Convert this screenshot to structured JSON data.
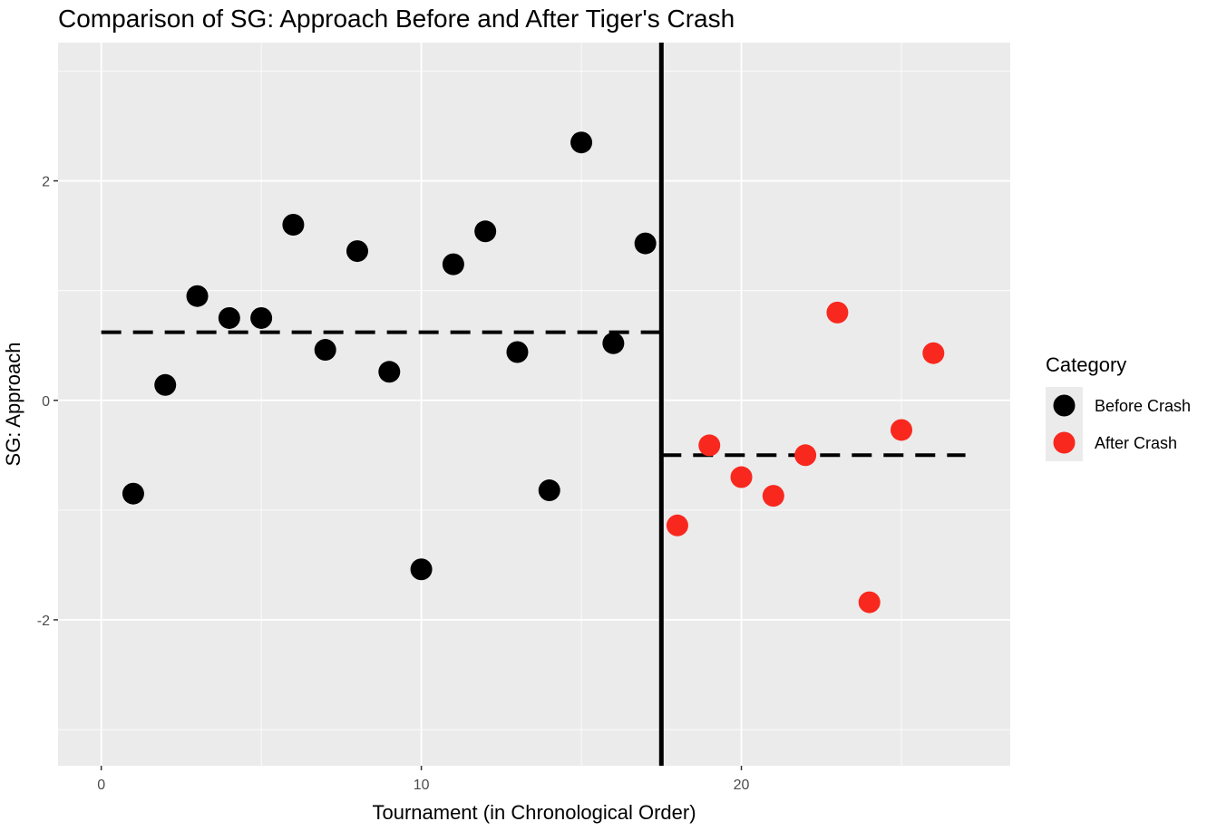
{
  "chart_data": {
    "type": "scatter",
    "title": "Comparison of SG: Approach Before and After Tiger's Crash",
    "xlabel": "Tournament (in Chronological Order)",
    "ylabel": "SG: Approach",
    "xlim": [
      -1.35,
      28.4
    ],
    "ylim": [
      -3.33,
      3.26
    ],
    "x_ticks": [
      0,
      10,
      20
    ],
    "y_ticks": [
      -2,
      0,
      2
    ],
    "grid": true,
    "legend": {
      "title": "Category",
      "placement": "right"
    },
    "series": [
      {
        "name": "Before Crash",
        "color": "#000000",
        "x": [
          1,
          2,
          3,
          4,
          5,
          6,
          7,
          8,
          9,
          10,
          11,
          12,
          13,
          14,
          15,
          16,
          17
        ],
        "y": [
          -0.85,
          0.14,
          0.95,
          0.75,
          0.75,
          1.6,
          0.46,
          1.36,
          0.26,
          -1.54,
          1.24,
          1.54,
          0.44,
          -0.82,
          2.35,
          0.52,
          1.43
        ]
      },
      {
        "name": "After Crash",
        "color": "#f8281e",
        "x": [
          18,
          19,
          20,
          21,
          22,
          23,
          24,
          25,
          26
        ],
        "y": [
          -1.14,
          -0.41,
          -0.7,
          -0.87,
          -0.5,
          0.8,
          -1.84,
          -0.27,
          0.43
        ]
      }
    ],
    "reference_lines": [
      {
        "kind": "vertical",
        "x": 17.5,
        "style": "solid",
        "color": "#000000"
      },
      {
        "kind": "mean",
        "x_from": 0,
        "x_to": 17.5,
        "y": 0.62,
        "style": "dashed",
        "color": "#000000"
      },
      {
        "kind": "mean",
        "x_from": 17.5,
        "x_to": 27,
        "y": -0.5,
        "style": "dashed",
        "color": "#000000"
      }
    ],
    "panel_background": "#ebebeb",
    "grid_color": "#ffffff"
  }
}
